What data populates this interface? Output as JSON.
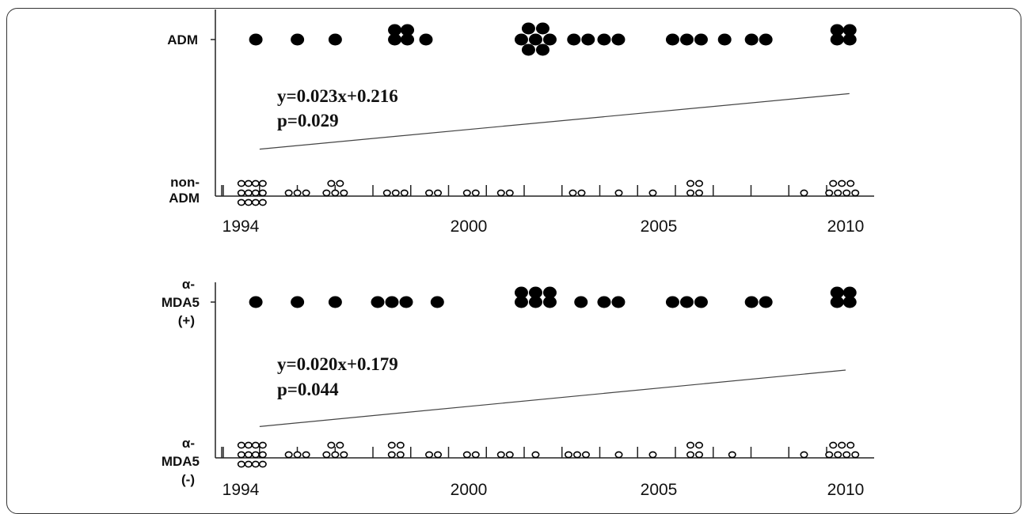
{
  "chart_data": [
    {
      "type": "scatter",
      "y_categories": [
        "non-ADM",
        "ADM"
      ],
      "ylabel_top": "ADM",
      "ylabel_bottom_lines": [
        "non-",
        "ADM"
      ],
      "x_ticks": [
        1994,
        2000,
        2005,
        2010
      ],
      "xlim": [
        1993.6,
        2010.8
      ],
      "equation": "y=0.023x+0.216",
      "pvalue": "p=0.029",
      "trend_line": {
        "x": [
          1994.5,
          2010.1
        ],
        "y": [
          0.23,
          0.62
        ]
      },
      "points_top": [
        {
          "x": 1994.4,
          "count": 1
        },
        {
          "x": 1995.5,
          "count": 1
        },
        {
          "x": 1996.5,
          "count": 1
        },
        {
          "x": 1998.2,
          "count": 4
        },
        {
          "x": 1998.9,
          "count": 1
        },
        {
          "x": 2001.8,
          "count": 7
        },
        {
          "x": 2003.0,
          "count": 2
        },
        {
          "x": 2003.8,
          "count": 2
        },
        {
          "x": 2005.8,
          "count": 3
        },
        {
          "x": 2006.8,
          "count": 1
        },
        {
          "x": 2007.7,
          "count": 2
        },
        {
          "x": 2009.9,
          "count": 4
        }
      ],
      "points_bottom": [
        {
          "x": 1994.3,
          "count": 12
        },
        {
          "x": 1995.5,
          "count": 3
        },
        {
          "x": 1996.5,
          "count": 5
        },
        {
          "x": 1998.1,
          "count": 3
        },
        {
          "x": 1999.1,
          "count": 2
        },
        {
          "x": 2000.1,
          "count": 2
        },
        {
          "x": 2001.0,
          "count": 2
        },
        {
          "x": 2002.9,
          "count": 2
        },
        {
          "x": 2004.0,
          "count": 1
        },
        {
          "x": 2004.9,
          "count": 1
        },
        {
          "x": 2006.0,
          "count": 4
        },
        {
          "x": 2008.9,
          "count": 1
        },
        {
          "x": 2009.9,
          "count": 7
        }
      ]
    },
    {
      "type": "scatter",
      "y_categories": [
        "α-MDA5 (-)",
        "α-MDA5 (+)"
      ],
      "ylabel_top_lines": [
        "α-",
        "MDA5",
        "(+)"
      ],
      "ylabel_bottom_lines": [
        "α-",
        "MDA5",
        "(-)"
      ],
      "x_ticks": [
        1994,
        2000,
        2005,
        2010
      ],
      "xlim": [
        1993.6,
        2010.8
      ],
      "equation": "y=0.020x+0.179",
      "pvalue": "p=0.044",
      "trend_line": {
        "x": [
          1994.5,
          2010.0
        ],
        "y": [
          0.14,
          0.53
        ]
      },
      "points_top": [
        {
          "x": 1994.4,
          "count": 1
        },
        {
          "x": 1995.5,
          "count": 1
        },
        {
          "x": 1996.5,
          "count": 1
        },
        {
          "x": 1998.0,
          "count": 3
        },
        {
          "x": 1999.2,
          "count": 1
        },
        {
          "x": 2001.8,
          "count": 6
        },
        {
          "x": 2003.0,
          "count": 1
        },
        {
          "x": 2003.8,
          "count": 2
        },
        {
          "x": 2005.8,
          "count": 3
        },
        {
          "x": 2007.7,
          "count": 2
        },
        {
          "x": 2009.9,
          "count": 4
        }
      ],
      "points_bottom": [
        {
          "x": 1994.3,
          "count": 12
        },
        {
          "x": 1995.5,
          "count": 3
        },
        {
          "x": 1996.5,
          "count": 5
        },
        {
          "x": 1998.1,
          "count": 4
        },
        {
          "x": 1999.1,
          "count": 2
        },
        {
          "x": 2000.1,
          "count": 2
        },
        {
          "x": 2001.0,
          "count": 2
        },
        {
          "x": 2001.8,
          "count": 1
        },
        {
          "x": 2002.9,
          "count": 3
        },
        {
          "x": 2004.0,
          "count": 1
        },
        {
          "x": 2004.9,
          "count": 1
        },
        {
          "x": 2006.0,
          "count": 4
        },
        {
          "x": 2007.0,
          "count": 1
        },
        {
          "x": 2008.9,
          "count": 1
        },
        {
          "x": 2009.9,
          "count": 7
        }
      ]
    }
  ]
}
